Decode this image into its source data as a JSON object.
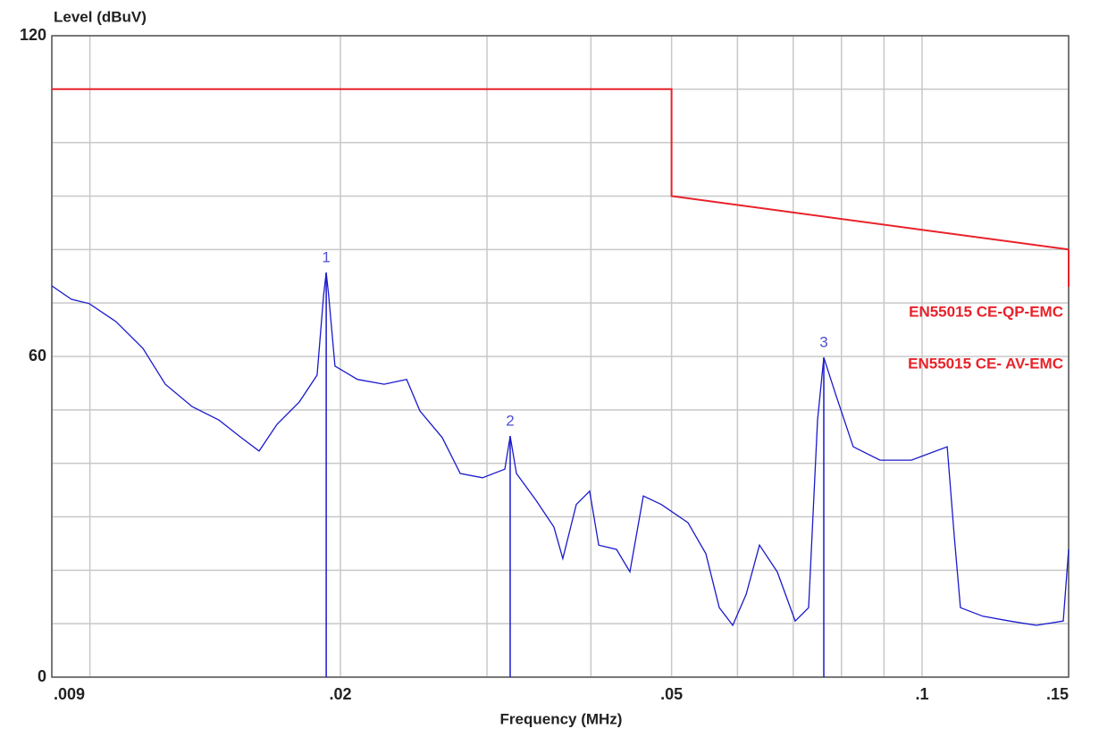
{
  "chart_data": {
    "type": "line",
    "y_label": "Level (dBuV)",
    "x_label": "Frequency (MHz)",
    "xscale": "log",
    "xlim": [
      0.009,
      0.15
    ],
    "xticks": [
      {
        "value": 0.009,
        "label": ".009"
      },
      {
        "value": 0.02,
        "label": ".02"
      },
      {
        "value": 0.05,
        "label": ".05"
      },
      {
        "value": 0.1,
        "label": ".1"
      },
      {
        "value": 0.15,
        "label": ".15"
      }
    ],
    "xgrid": [
      0.01,
      0.03,
      0.04,
      0.06,
      0.07,
      0.08,
      0.09
    ],
    "ylim": [
      0,
      120
    ],
    "yticks": [
      0,
      60,
      120
    ],
    "ygrid": [
      10,
      20,
      30,
      40,
      50,
      70,
      80,
      90,
      100,
      110
    ],
    "grid": true,
    "series": [
      {
        "name": "EN55015 CE-QP-EMC",
        "color": "#e8222a",
        "x": [
          0.009,
          0.05,
          0.05,
          0.15
        ],
        "values": [
          110,
          110,
          90,
          80
        ]
      },
      {
        "name": "EN55015 CE- AV-EMC",
        "color": "#e8222a",
        "x": [
          0.15,
          0.15
        ],
        "values": [
          80,
          73
        ]
      },
      {
        "color": "#1a1acc",
        "x": [
          0.009,
          0.0095,
          0.00998,
          0.01075,
          0.01158,
          0.01232,
          0.01327,
          0.01429,
          0.0152,
          0.01597,
          0.01678,
          0.01785,
          0.01875,
          0.01909,
          0.01923,
          0.01936,
          0.0197,
          0.02096,
          0.02257,
          0.02402,
          0.02492,
          0.02651,
          0.02786,
          0.02963,
          0.03152,
          0.03199,
          0.03255,
          0.03436,
          0.0361,
          0.03701,
          0.03841,
          0.03986,
          0.04087,
          0.04293,
          0.04456,
          0.04624,
          0.04859,
          0.05233,
          0.05497,
          0.05706,
          0.05922,
          0.06146,
          0.06377,
          0.06699,
          0.07039,
          0.07305,
          0.07489,
          0.07619,
          0.07866,
          0.08265,
          0.08902,
          0.09707,
          0.1072,
          0.1093,
          0.1112,
          0.1183,
          0.1274,
          0.1372,
          0.1478,
          0.15
        ],
        "values": [
          73.2,
          70.7,
          69.9,
          66.5,
          61.5,
          54.8,
          50.6,
          48.1,
          44.8,
          42.3,
          47.3,
          51.5,
          56.5,
          71.5,
          75.7,
          71.5,
          58.2,
          55.7,
          54.8,
          55.7,
          49.8,
          44.8,
          38.1,
          37.3,
          38.9,
          45.1,
          38.1,
          33.1,
          28.1,
          22.2,
          32.3,
          34.8,
          24.7,
          23.9,
          19.7,
          33.9,
          32.3,
          28.9,
          23.1,
          13.0,
          9.7,
          15.5,
          24.7,
          19.7,
          10.5,
          13.0,
          48.1,
          59.8,
          53.1,
          43.1,
          40.6,
          40.6,
          43.1,
          26.4,
          13.0,
          11.4,
          10.5,
          9.7,
          10.5,
          23.9
        ]
      }
    ],
    "markers": [
      {
        "label": "1",
        "x": 0.01923,
        "value": 75.7
      },
      {
        "label": "2",
        "x": 0.03199,
        "value": 45.1
      },
      {
        "label": "3",
        "x": 0.07619,
        "value": 59.8
      }
    ]
  }
}
